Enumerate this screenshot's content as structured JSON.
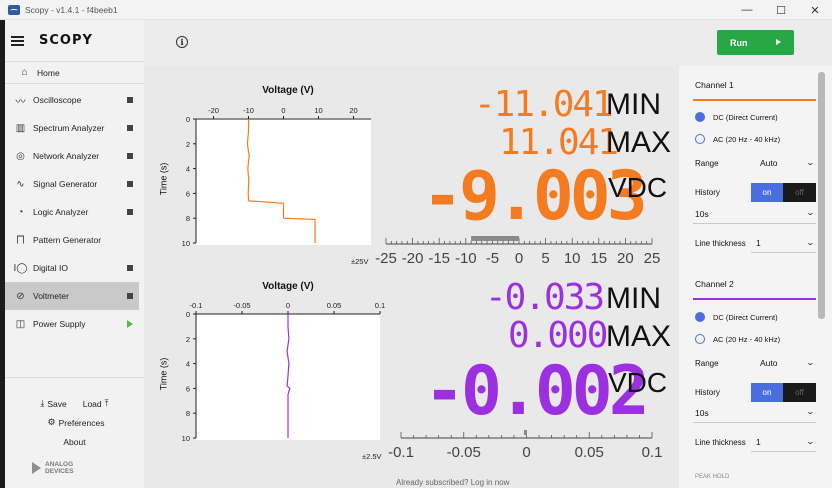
{
  "window": {
    "title": "Scopy - v1.4.1 - f4beeb1",
    "controls": [
      "—",
      "☐",
      "✕"
    ]
  },
  "sidebar": {
    "logo": "SCOPY",
    "home": "Home",
    "items": [
      {
        "label": "Oscilloscope",
        "icon": "oscilloscope-icon"
      },
      {
        "label": "Spectrum Analyzer",
        "icon": "spectrum-icon"
      },
      {
        "label": "Network Analyzer",
        "icon": "network-icon"
      },
      {
        "label": "Signal Generator",
        "icon": "signal-generator-icon"
      },
      {
        "label": "Logic Analyzer",
        "icon": "logic-icon"
      },
      {
        "label": "Pattern Generator",
        "icon": "pattern-icon"
      },
      {
        "label": "Digital IO",
        "icon": "digital-io-icon"
      },
      {
        "label": "Voltmeter",
        "icon": "voltmeter-icon"
      },
      {
        "label": "Power Supply",
        "icon": "power-supply-icon"
      }
    ],
    "save": "Save",
    "load": "Load",
    "preferences": "Preferences",
    "about": "About",
    "brand_line1": "ANALOG",
    "brand_line2": "DEVICES"
  },
  "toolbar": {
    "run_label": "Run"
  },
  "channel1": {
    "color": "#f47b20",
    "plot": {
      "title": "Voltage (V)",
      "ylabel": "Time (s)",
      "xticks": [
        "-20",
        "-10",
        "0",
        "10",
        "20"
      ],
      "yticks": [
        "0",
        "2",
        "4",
        "6",
        "8",
        "10"
      ]
    },
    "min_value": "-11.041",
    "min_label": "MIN",
    "max_value": "11.041",
    "max_label": "MAX",
    "value": "-9.003",
    "unit": "VDC",
    "scale_range": "±25V",
    "scale_ticks": [
      "-25",
      "-20",
      "-15",
      "-10",
      "-5",
      "0",
      "5",
      "10",
      "15",
      "20",
      "25"
    ]
  },
  "channel2": {
    "color": "#9b30e0",
    "plot": {
      "title": "Voltage (V)",
      "ylabel": "Time (s)",
      "xticks": [
        "-0.1",
        "-0.05",
        "0",
        "0.05",
        "0.1"
      ],
      "yticks": [
        "0",
        "2",
        "4",
        "6",
        "8",
        "10"
      ]
    },
    "min_value": "-0.033",
    "min_label": "MIN",
    "max_value": "0.000",
    "max_label": "MAX",
    "value": "-0.002",
    "unit": "VDC",
    "scale_range": "±2.5V",
    "scale_ticks": [
      "-0.1",
      "-0.05",
      "0",
      "0.05",
      "0.1"
    ]
  },
  "chart_data": [
    {
      "type": "line",
      "title": "Voltage (V)",
      "xlabel": "Voltage (V)",
      "ylabel": "Time (s)",
      "xlim": [
        -25,
        25
      ],
      "ylim": [
        0,
        10
      ],
      "series": [
        {
          "x": [
            -10,
            -10,
            -10.3,
            -9.8,
            -10.2,
            -9.9,
            -10.1,
            -10,
            -10,
            0,
            0,
            9,
            9,
            9
          ],
          "y": [
            0,
            1,
            2,
            3,
            4,
            5,
            6,
            6.4,
            6.6,
            6.8,
            8,
            8.1,
            9,
            10
          ]
        }
      ]
    },
    {
      "type": "line",
      "title": "Voltage (V)",
      "xlabel": "Voltage (V)",
      "ylabel": "Time (s)",
      "xlim": [
        -0.1,
        0.1
      ],
      "ylim": [
        0,
        10
      ],
      "series": [
        {
          "x": [
            0,
            0,
            0.001,
            -0.001,
            0.001,
            0,
            -0.001,
            0.002,
            0,
            0,
            0
          ],
          "y": [
            0,
            1,
            2,
            3,
            4,
            5,
            5.8,
            6,
            6.5,
            8,
            10
          ]
        }
      ]
    }
  ],
  "settings": {
    "channel1_title": "Channel 1",
    "channel2_title": "Channel 2",
    "dc_label": "DC (Direct Current)",
    "ac_label": "AC (20 Hz - 40 kHz)",
    "range_label": "Range",
    "range_value": "Auto",
    "history_label": "History",
    "toggle_on": "on",
    "toggle_off": "off",
    "history_value": "10s",
    "line_thickness_label": "Line thickness",
    "line_thickness_value": "1",
    "peak_hold": "PEAK HOLD"
  },
  "background_text": "Already subscribed? Log in now"
}
